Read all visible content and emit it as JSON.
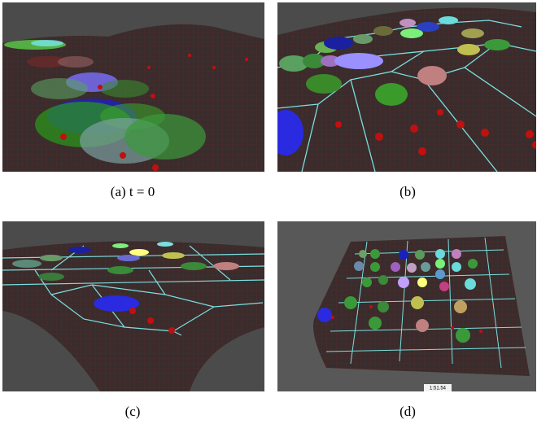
{
  "panels": [
    {
      "caption": "(a) t = 0"
    },
    {
      "caption": "(b)"
    },
    {
      "caption": "(c)"
    },
    {
      "caption": "(d)",
      "timer": "1:51.54"
    }
  ]
}
